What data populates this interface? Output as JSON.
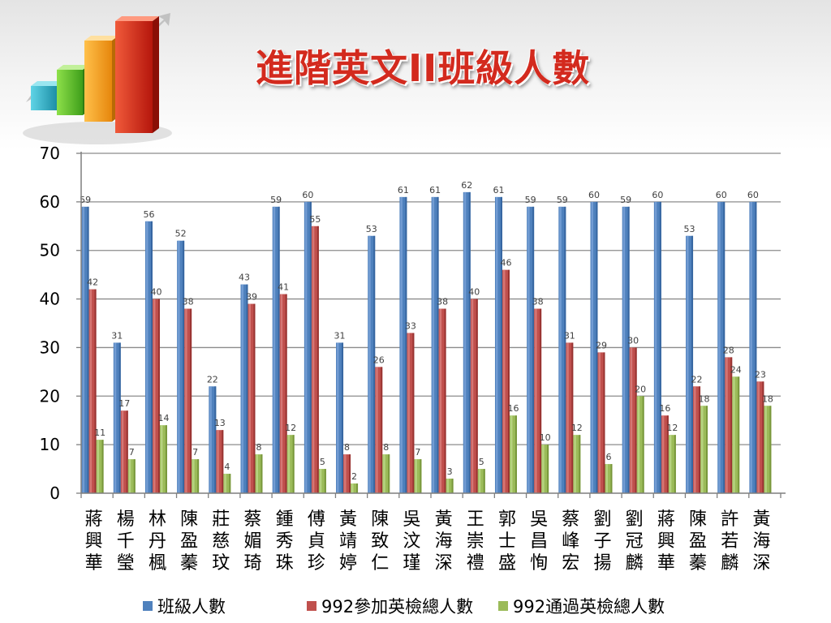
{
  "title": "進階英文II班級人數",
  "chart_data": {
    "type": "bar",
    "title": "進階英文II班級人數",
    "categories": [
      "蔣興華",
      "楊千瑩",
      "林丹楓",
      "陳盈蓁",
      "莊慈玟",
      "蔡媚琦",
      "鍾秀珠",
      "傅貞珍",
      "黃靖婷",
      "陳致仁",
      "吳汶瑾",
      "黃海深",
      "王崇禮",
      "郭士盛",
      "吳昌恂",
      "蔡峰宏",
      "劉子揚",
      "劉冠麟",
      "蔣興華",
      "陳盈蓁",
      "許若麟",
      "黃海深"
    ],
    "series": [
      {
        "name": "班級人數",
        "color": "#4f81bd",
        "values": [
          59,
          31,
          56,
          52,
          22,
          43,
          59,
          60,
          31,
          53,
          61,
          61,
          62,
          61,
          59,
          59,
          60,
          59,
          60,
          53,
          60,
          60
        ]
      },
      {
        "name": "992參加英檢總人數",
        "color": "#c0504d",
        "values": [
          42,
          17,
          40,
          38,
          13,
          39,
          41,
          55,
          8,
          26,
          33,
          38,
          40,
          46,
          38,
          31,
          29,
          30,
          16,
          22,
          28,
          23
        ]
      },
      {
        "name": "992通過英檢總人數",
        "color": "#9bbb59",
        "values": [
          11,
          7,
          14,
          7,
          4,
          8,
          12,
          5,
          2,
          8,
          7,
          3,
          5,
          16,
          10,
          12,
          6,
          20,
          12,
          18,
          24,
          18
        ]
      }
    ],
    "ylim": [
      0,
      70
    ],
    "yticks": [
      0,
      10,
      20,
      30,
      40,
      50,
      60,
      70
    ],
    "xlabel": "",
    "ylabel": "",
    "grid": true,
    "legend_position": "bottom",
    "data_labels": true
  }
}
